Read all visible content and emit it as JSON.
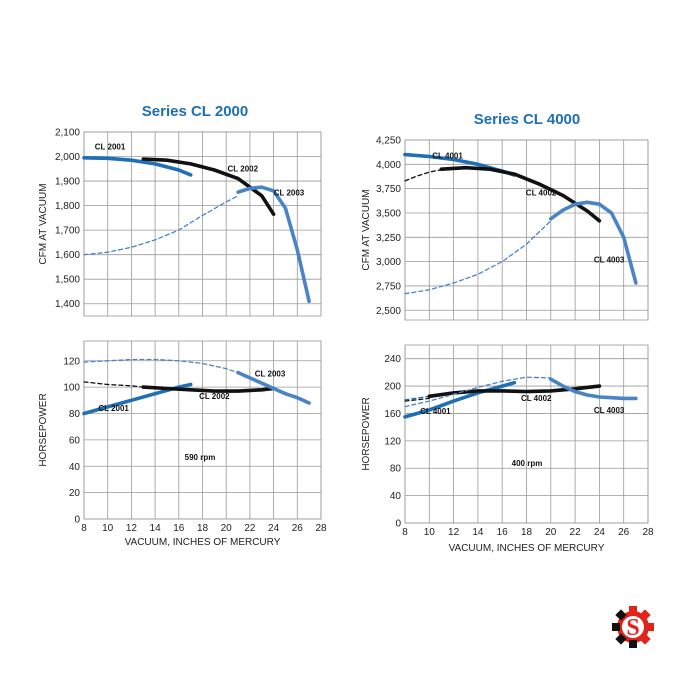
{
  "logo": {
    "glyph": "S",
    "colors": [
      "#e2231a",
      "#111111"
    ]
  },
  "chart_data": [
    {
      "chart": "Series CL 2000",
      "title": "Series CL 2000",
      "xlabel": "VACUUM, INCHES OF MERCURY",
      "x_ticks": [
        8,
        10,
        12,
        14,
        16,
        18,
        20,
        22,
        24,
        26,
        28
      ],
      "xlim": [
        8,
        28
      ],
      "note": "590 rpm",
      "colors": {
        "CL 2001": "#1e6fb5",
        "CL 2002": "#111111",
        "CL 2003": "#4a84c4"
      },
      "panels": [
        {
          "type": "line",
          "ylabel": "CFM AT VACUUM",
          "ylim": [
            1350,
            2100
          ],
          "y_ticks": [
            1400,
            1500,
            1600,
            1700,
            1800,
            1900,
            2000,
            2100
          ],
          "y_tick_labels": [
            "1,400",
            "1,500",
            "1,600",
            "1,700",
            "1,800",
            "1,900",
            "2,000",
            "2,100"
          ],
          "series": [
            {
              "name": "CL 2001",
              "style": "solid",
              "x": [
                8,
                10,
                12,
                14,
                16,
                17
              ],
              "y": [
                1995,
                1993,
                1985,
                1970,
                1945,
                1925
              ]
            },
            {
              "name": "CL 2002",
              "style": "solid",
              "x": [
                13,
                15,
                17,
                19,
                21,
                23,
                24
              ],
              "y": [
                1990,
                1985,
                1970,
                1945,
                1910,
                1840,
                1765
              ]
            },
            {
              "name": "CL 2003",
              "style": "dashed",
              "x": [
                8,
                10,
                12,
                14,
                16,
                18,
                20,
                21
              ],
              "y": [
                1600,
                1610,
                1630,
                1660,
                1700,
                1760,
                1815,
                1840
              ]
            },
            {
              "name": "CL 2003",
              "style": "solid",
              "x": [
                21,
                22,
                23,
                24,
                25,
                26,
                27
              ],
              "y": [
                1855,
                1870,
                1875,
                1860,
                1790,
                1620,
                1410
              ]
            }
          ],
          "labels": [
            {
              "text": "CL 2001",
              "x": 10.2,
              "y": 2028
            },
            {
              "text": "CL 2002",
              "x": 21.4,
              "y": 1940
            },
            {
              "text": "CL 2003",
              "x": 25.3,
              "y": 1842
            }
          ]
        },
        {
          "type": "line",
          "ylabel": "HORSEPOWER",
          "ylim": [
            0,
            135
          ],
          "y_ticks": [
            0,
            20,
            40,
            60,
            80,
            100,
            120
          ],
          "y_tick_labels": [
            "0",
            "20",
            "40",
            "60",
            "80",
            "100",
            "120"
          ],
          "series": [
            {
              "name": "CL 2001",
              "style": "solid",
              "x": [
                8,
                10,
                12,
                14,
                16,
                17
              ],
              "y": [
                80,
                85,
                90,
                95,
                100,
                102
              ]
            },
            {
              "name": "CL 2002",
              "style": "dashed",
              "x": [
                8,
                10,
                12,
                13
              ],
              "y": [
                104,
                102,
                101,
                100
              ]
            },
            {
              "name": "CL 2002",
              "style": "solid",
              "x": [
                13,
                15,
                17,
                19,
                21,
                23,
                24
              ],
              "y": [
                100,
                99,
                98,
                97,
                97,
                98,
                99
              ]
            },
            {
              "name": "CL 2003",
              "style": "dashed",
              "x": [
                8,
                10,
                12,
                14,
                16,
                18,
                20,
                21
              ],
              "y": [
                119,
                120,
                121,
                121,
                120,
                118,
                114,
                111
              ]
            },
            {
              "name": "CL 2003",
              "style": "solid",
              "x": [
                21,
                22,
                23,
                24,
                25,
                26,
                27
              ],
              "y": [
                111,
                107,
                103,
                99,
                95,
                92,
                88
              ]
            }
          ],
          "labels": [
            {
              "text": "CL 2001",
              "x": 10.5,
              "y": 82
            },
            {
              "text": "CL 2002",
              "x": 19,
              "y": 91
            },
            {
              "text": "CL 2003",
              "x": 23.7,
              "y": 108
            }
          ]
        }
      ]
    },
    {
      "chart": "Series CL 4000",
      "title": "Series CL 4000",
      "xlabel": "VACUUM, INCHES OF MERCURY",
      "x_ticks": [
        8,
        10,
        12,
        14,
        16,
        18,
        20,
        22,
        24,
        26,
        28
      ],
      "xlim": [
        8,
        28
      ],
      "note": "400 rpm",
      "colors": {
        "CL 4001": "#1e6fb5",
        "CL 4002": "#111111",
        "CL 4003": "#4a84c4"
      },
      "panels": [
        {
          "type": "line",
          "ylabel": "CFM AT VACUUM",
          "ylim": [
            2400,
            4250
          ],
          "y_ticks": [
            2500,
            2750,
            3000,
            3250,
            3500,
            3750,
            4000,
            4250
          ],
          "y_tick_labels": [
            "2,500",
            "2,750",
            "3,000",
            "3,250",
            "3,500",
            "3,750",
            "4,000",
            "4,250"
          ],
          "series": [
            {
              "name": "CL 4001",
              "style": "solid",
              "x": [
                8,
                10,
                12,
                14,
                16,
                17
              ],
              "y": [
                4100,
                4080,
                4050,
                4000,
                3930,
                3890
              ]
            },
            {
              "name": "CL 4002",
              "style": "dashed",
              "x": [
                8,
                9,
                10,
                11
              ],
              "y": [
                3830,
                3880,
                3920,
                3945
              ]
            },
            {
              "name": "CL 4002",
              "style": "solid",
              "x": [
                11,
                13,
                15,
                17,
                19,
                21,
                23,
                24
              ],
              "y": [
                3950,
                3965,
                3950,
                3900,
                3800,
                3680,
                3520,
                3420
              ]
            },
            {
              "name": "CL 4003",
              "style": "dashed",
              "x": [
                8,
                10,
                12,
                14,
                16,
                18,
                20
              ],
              "y": [
                2670,
                2710,
                2780,
                2870,
                3000,
                3180,
                3420
              ]
            },
            {
              "name": "CL 4003",
              "style": "solid",
              "x": [
                20,
                21,
                22,
                23,
                24,
                25,
                26,
                27
              ],
              "y": [
                3440,
                3530,
                3590,
                3610,
                3590,
                3500,
                3250,
                2780
              ]
            }
          ],
          "labels": [
            {
              "text": "CL 4001",
              "x": 11.5,
              "y": 4060
            },
            {
              "text": "CL 4002",
              "x": 19.2,
              "y": 3680
            },
            {
              "text": "CL 4003",
              "x": 24.8,
              "y": 2990
            }
          ]
        },
        {
          "type": "line",
          "ylabel": "HORSEPOWER",
          "ylim": [
            0,
            260
          ],
          "y_ticks": [
            0,
            40,
            80,
            120,
            160,
            200,
            240
          ],
          "y_tick_labels": [
            "0",
            "40",
            "80",
            "120",
            "160",
            "200",
            "240"
          ],
          "series": [
            {
              "name": "CL 4001",
              "style": "dashed",
              "x": [
                8,
                10
              ],
              "y": [
                180,
                185
              ]
            },
            {
              "name": "CL 4001",
              "style": "solid",
              "x": [
                8,
                10,
                12,
                14,
                16,
                17
              ],
              "y": [
                155,
                165,
                178,
                190,
                200,
                205
              ]
            },
            {
              "name": "CL 4002",
              "style": "dashed",
              "x": [
                8,
                10
              ],
              "y": [
                178,
                182
              ]
            },
            {
              "name": "CL 4002",
              "style": "solid",
              "x": [
                10,
                12,
                14,
                16,
                18,
                20,
                22,
                24
              ],
              "y": [
                185,
                190,
                193,
                193,
                192,
                193,
                196,
                200
              ]
            },
            {
              "name": "CL 4003",
              "style": "dashed",
              "x": [
                8,
                10,
                12,
                14,
                16,
                18,
                20
              ],
              "y": [
                170,
                178,
                188,
                198,
                207,
                213,
                212
              ]
            },
            {
              "name": "CL 4003",
              "style": "solid",
              "x": [
                20,
                21,
                22,
                23,
                24,
                25,
                26,
                27
              ],
              "y": [
                210,
                200,
                192,
                187,
                184,
                183,
                182,
                182
              ]
            }
          ],
          "labels": [
            {
              "text": "CL 4001",
              "x": 10.5,
              "y": 159
            },
            {
              "text": "CL 4002",
              "x": 18.8,
              "y": 178
            },
            {
              "text": "CL 4003",
              "x": 24.8,
              "y": 161
            }
          ]
        }
      ]
    }
  ]
}
